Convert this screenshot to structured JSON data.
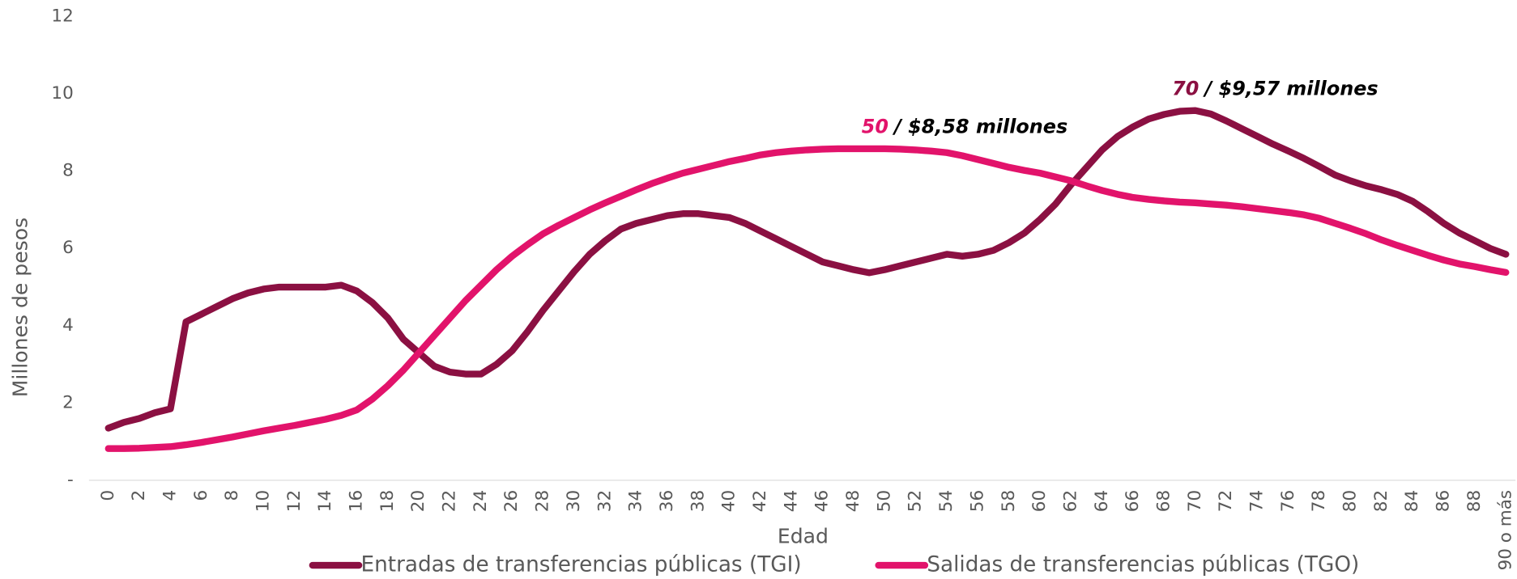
{
  "chart_data": {
    "type": "line",
    "ylabel": "Millones de pesos",
    "xlabel": "Edad",
    "categories": [
      "0",
      null,
      "2",
      null,
      "4",
      null,
      "6",
      null,
      "8",
      null,
      "10",
      null,
      "12",
      null,
      "14",
      null,
      "16",
      null,
      "18",
      null,
      "20",
      null,
      "22",
      null,
      "24",
      null,
      "26",
      null,
      "28",
      null,
      "30",
      null,
      "32",
      null,
      "34",
      null,
      "36",
      null,
      "38",
      null,
      "40",
      null,
      "42",
      null,
      "44",
      null,
      "46",
      null,
      "48",
      null,
      "50",
      null,
      "52",
      null,
      "54",
      null,
      "56",
      null,
      "58",
      null,
      "60",
      null,
      "62",
      null,
      "64",
      null,
      "66",
      null,
      "68",
      null,
      "70",
      null,
      "72",
      null,
      "74",
      null,
      "76",
      null,
      "78",
      null,
      "80",
      null,
      "82",
      null,
      "84",
      null,
      "86",
      null,
      "88",
      null,
      "90 o más"
    ],
    "series": [
      {
        "name": "Entradas de transferencias públicas (TGI)",
        "color": "#8b1042",
        "values": [
          1.35,
          1.5,
          1.6,
          1.75,
          1.85,
          4.1,
          4.3,
          4.5,
          4.7,
          4.85,
          4.95,
          5.0,
          5.0,
          5.0,
          5.0,
          5.05,
          4.9,
          4.6,
          4.2,
          3.65,
          3.3,
          2.95,
          2.8,
          2.75,
          2.75,
          3.0,
          3.35,
          3.85,
          4.4,
          4.9,
          5.4,
          5.85,
          6.2,
          6.5,
          6.65,
          6.75,
          6.85,
          6.9,
          6.9,
          6.85,
          6.8,
          6.65,
          6.45,
          6.25,
          6.05,
          5.85,
          5.65,
          5.55,
          5.45,
          5.37,
          5.45,
          5.55,
          5.65,
          5.75,
          5.85,
          5.8,
          5.85,
          5.95,
          6.15,
          6.4,
          6.75,
          7.15,
          7.65,
          8.1,
          8.55,
          8.9,
          9.15,
          9.35,
          9.47,
          9.55,
          9.57,
          9.48,
          9.3,
          9.1,
          8.9,
          8.7,
          8.52,
          8.33,
          8.12,
          7.9,
          7.75,
          7.62,
          7.52,
          7.4,
          7.22,
          6.95,
          6.65,
          6.4,
          6.2,
          6.0,
          5.85
        ]
      },
      {
        "name": "Salidas de transferencias públicas (TGO)",
        "color": "#e2136b",
        "values": [
          0.82,
          0.82,
          0.83,
          0.85,
          0.87,
          0.92,
          0.98,
          1.05,
          1.12,
          1.2,
          1.28,
          1.35,
          1.42,
          1.5,
          1.58,
          1.68,
          1.82,
          2.1,
          2.45,
          2.85,
          3.3,
          3.75,
          4.2,
          4.65,
          5.05,
          5.45,
          5.8,
          6.1,
          6.38,
          6.6,
          6.8,
          7.0,
          7.18,
          7.35,
          7.52,
          7.68,
          7.82,
          7.95,
          8.05,
          8.15,
          8.25,
          8.33,
          8.42,
          8.48,
          8.52,
          8.55,
          8.57,
          8.58,
          8.58,
          8.58,
          8.58,
          8.57,
          8.55,
          8.52,
          8.48,
          8.4,
          8.3,
          8.2,
          8.1,
          8.02,
          7.95,
          7.85,
          7.75,
          7.62,
          7.5,
          7.4,
          7.32,
          7.27,
          7.23,
          7.2,
          7.18,
          7.15,
          7.12,
          7.08,
          7.03,
          6.98,
          6.93,
          6.87,
          6.78,
          6.65,
          6.52,
          6.38,
          6.22,
          6.08,
          5.95,
          5.82,
          5.7,
          5.6,
          5.53,
          5.45,
          5.38
        ]
      }
    ],
    "annotations": [
      {
        "label": "50",
        "text": "/  $8,58 millones",
        "color": "#e2136b"
      },
      {
        "label": "70",
        "text": "/  $9,57 millones",
        "color": "#8b1042"
      }
    ],
    "ylim": [
      0,
      12
    ],
    "yticks": [
      {
        "value": 0,
        "label": "-"
      },
      2,
      4,
      6,
      8,
      10,
      12
    ],
    "grid": false,
    "legend": "bottom"
  }
}
